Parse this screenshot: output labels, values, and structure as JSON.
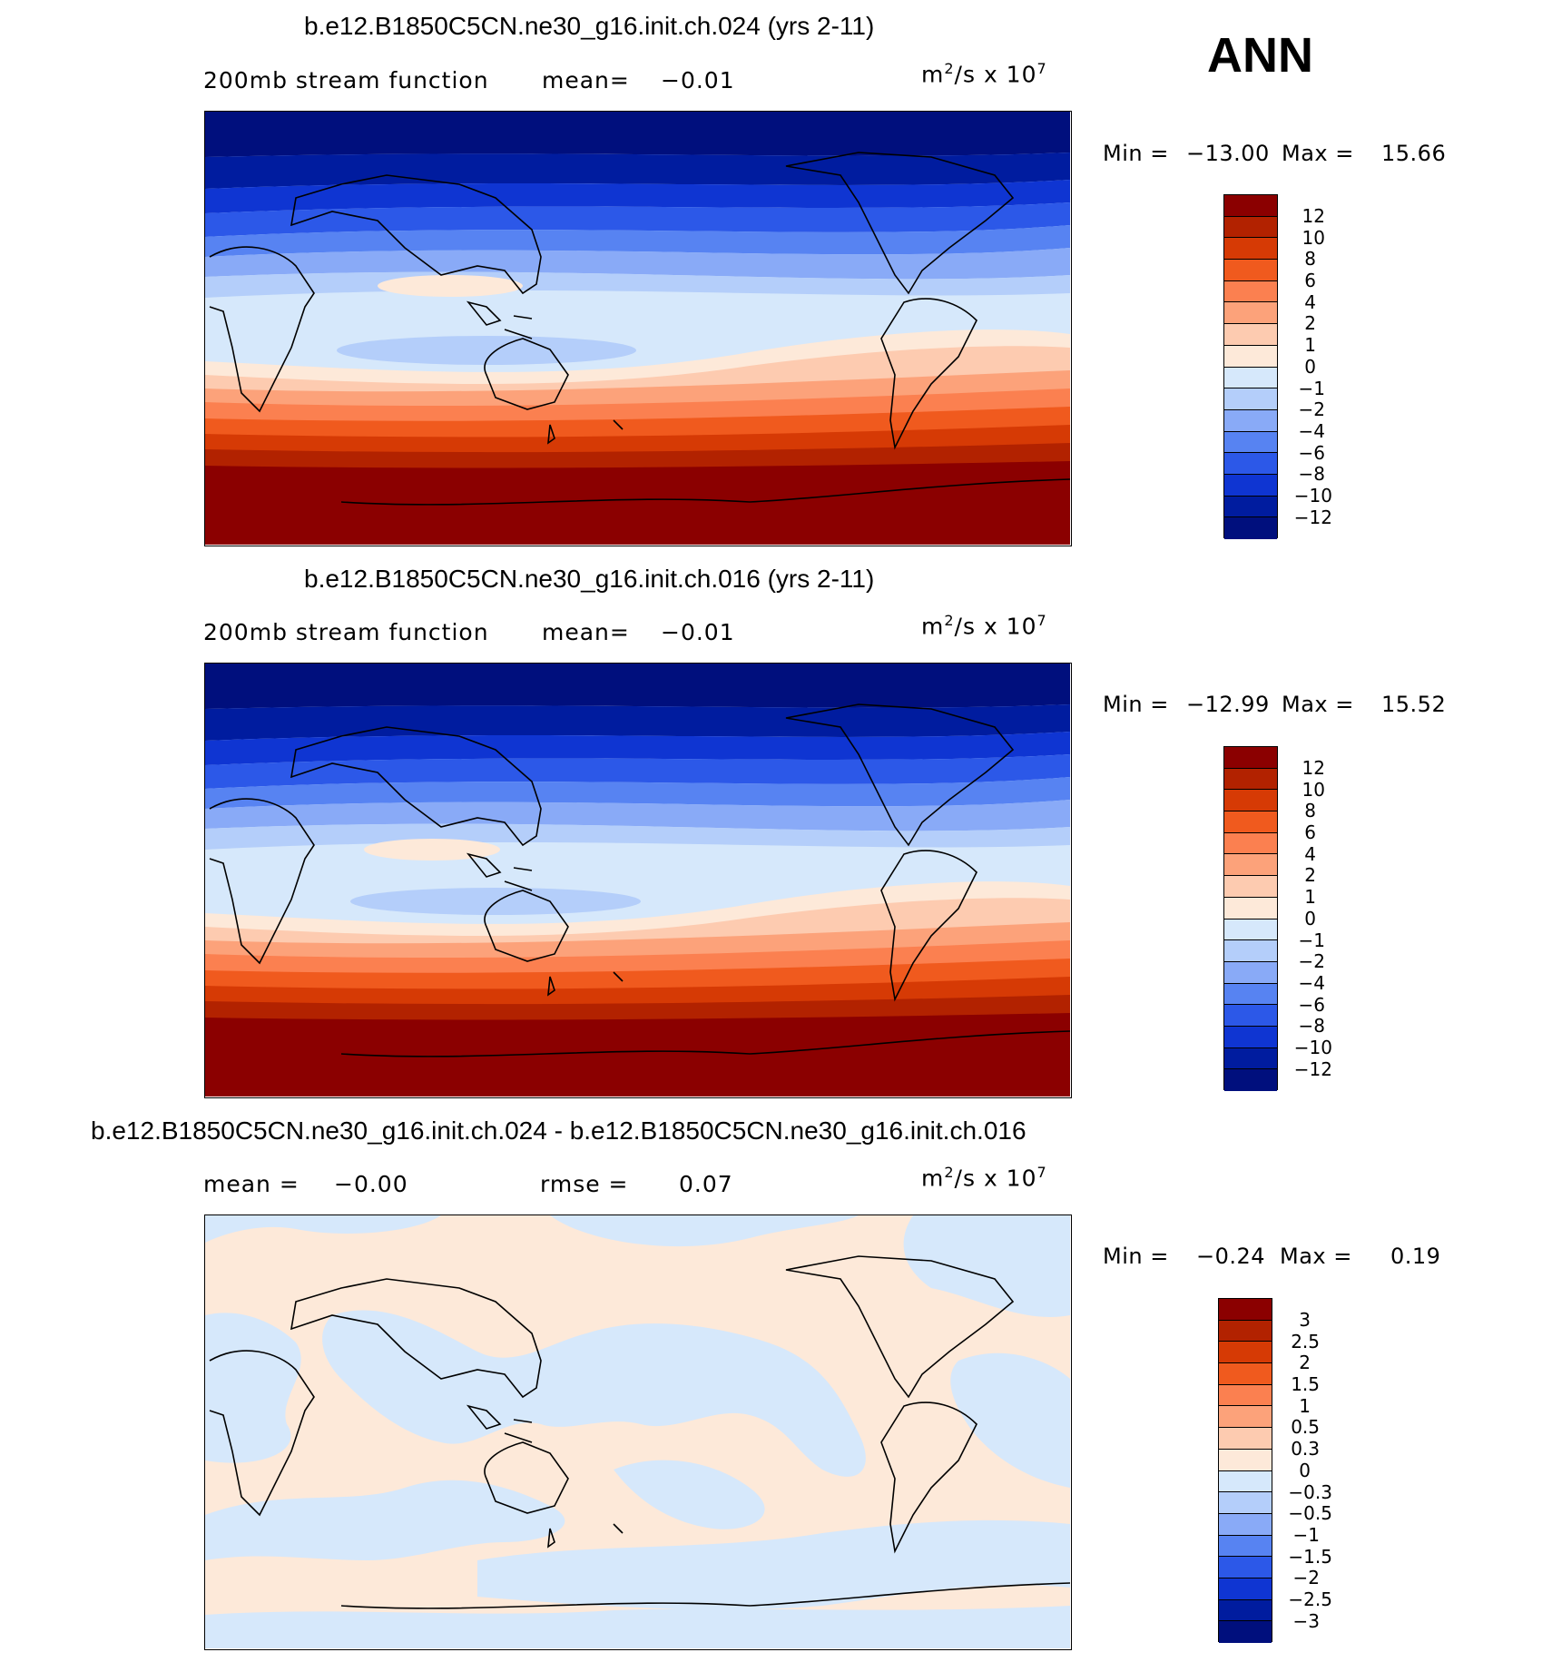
{
  "season_label": "ANN",
  "panels": [
    {
      "title": "b.e12.B1850C5CN.ne30_g16.init.ch.024 (yrs 2-11)",
      "subtitle_left": "200mb stream function",
      "stat1_label": "mean=",
      "stat1_value": "−0.01",
      "units_base": "m",
      "units_exp1": "2",
      "units_mid": "/s x 10",
      "units_exp2": "7",
      "min_label": "Min =",
      "min_value": "−13.00",
      "max_label": "Max =",
      "max_value": "15.66",
      "colorbar_labels": [
        "12",
        "10",
        "8",
        "6",
        "4",
        "2",
        "1",
        "0",
        "−1",
        "−2",
        "−4",
        "−6",
        "−8",
        "−10",
        "−12"
      ]
    },
    {
      "title": "b.e12.B1850C5CN.ne30_g16.init.ch.016 (yrs 2-11)",
      "subtitle_left": "200mb stream function",
      "stat1_label": "mean=",
      "stat1_value": "−0.01",
      "units_base": "m",
      "units_exp1": "2",
      "units_mid": "/s x 10",
      "units_exp2": "7",
      "min_label": "Min =",
      "min_value": "−12.99",
      "max_label": "Max =",
      "max_value": "15.52",
      "colorbar_labels": [
        "12",
        "10",
        "8",
        "6",
        "4",
        "2",
        "1",
        "0",
        "−1",
        "−2",
        "−4",
        "−6",
        "−8",
        "−10",
        "−12"
      ]
    },
    {
      "title": "b.e12.B1850C5CN.ne30_g16.init.ch.024 - b.e12.B1850C5CN.ne30_g16.init.ch.016",
      "stat1_label": "mean =",
      "stat1_value": "−0.00",
      "stat2_label": "rmse =",
      "stat2_value": "0.07",
      "units_base": "m",
      "units_exp1": "2",
      "units_mid": "/s x 10",
      "units_exp2": "7",
      "min_label": "Min =",
      "min_value": "−0.24",
      "max_label": "Max =",
      "max_value": "0.19",
      "colorbar_labels": [
        "3",
        "2.5",
        "2",
        "1.5",
        "1",
        "0.5",
        "0.3",
        "0",
        "−0.3",
        "−0.5",
        "−1",
        "−1.5",
        "−2",
        "−2.5",
        "−3"
      ]
    }
  ],
  "colors": {
    "palette": [
      "#8b0000",
      "#b22200",
      "#d63a05",
      "#f05a1e",
      "#fb8050",
      "#fca27a",
      "#fdcbb0",
      "#fde9d9",
      "#d6e8fb",
      "#b4cefa",
      "#89aaf7",
      "#5783f2",
      "#2c58e8",
      "#0f35d2",
      "#001c9f",
      "#000f7d"
    ],
    "land_outline": "#000000"
  }
}
